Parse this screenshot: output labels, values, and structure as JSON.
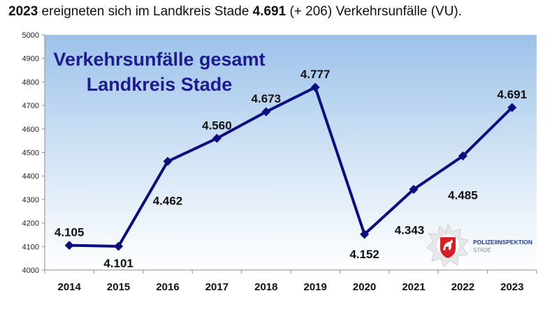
{
  "headline": {
    "year": "2023",
    "text_mid": " ereigneten sich im Landkreis Stade ",
    "count": "4.691",
    "text_end": " (+ 206) Verkehrsunfälle (VU)."
  },
  "logo": {
    "line1": "POLIZEIINSPEKTION",
    "line2": "STADE"
  },
  "chart_data": {
    "type": "line",
    "title_lines": [
      "Verkehrsunfälle gesamt",
      "Landkreis Stade"
    ],
    "categories": [
      "2014",
      "2015",
      "2016",
      "2017",
      "2018",
      "2019",
      "2020",
      "2021",
      "2022",
      "2023"
    ],
    "values": [
      4105,
      4101,
      4462,
      4560,
      4673,
      4777,
      4152,
      4343,
      4485,
      4691
    ],
    "data_labels": [
      "4.105",
      "4.101",
      "4.462",
      "4.560",
      "4.673",
      "4.777",
      "4.152",
      "4.343",
      "4.485",
      "4.691"
    ],
    "yticks": [
      "4000",
      "4100",
      "4200",
      "4300",
      "4400",
      "4500",
      "4600",
      "4700",
      "4800",
      "4900",
      "5000"
    ],
    "ylim": [
      4000,
      5000
    ],
    "grid": false,
    "legend": "none",
    "line_color": "#0d0d82",
    "background": "gradient light blue to white"
  }
}
